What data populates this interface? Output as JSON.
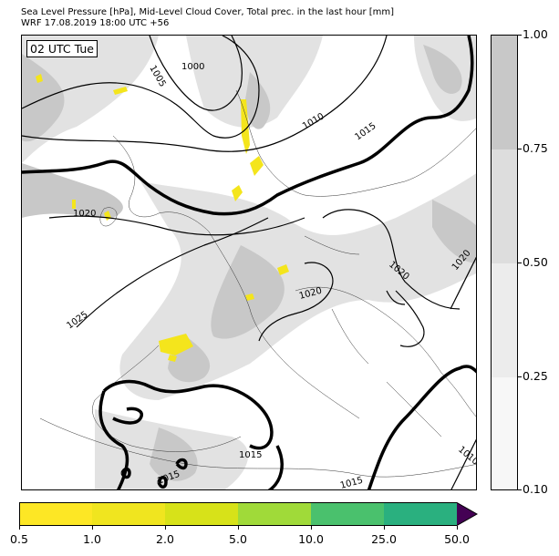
{
  "title_line1": "Sea Level Pressure [hPa], Mid-Level Cloud Cover, Total prec. in the last hour [mm]",
  "title_line2": "WRF 17.08.2019 18:00 UTC +56",
  "time_label": "02 UTC Tue",
  "isobar_labels": {
    "l1000": "1000",
    "l1005": "1005",
    "l1010_a": "1010",
    "l1015_a": "1015",
    "l1020_a": "1020",
    "l1020_b": "1020",
    "l1020_c": "1020",
    "l1020_d": "1020",
    "l1025": "1025",
    "l1015_b": "1015",
    "l1015_c": "1015",
    "l1015_d": "1015",
    "l1010_b": "1010"
  },
  "cloud_cover_colorbar": {
    "ticks": [
      "0.10",
      "0.25",
      "0.50",
      "0.75",
      "1.00"
    ],
    "colors": [
      "#f7f7f7",
      "#ececec",
      "#dddddd",
      "#c8c8c8"
    ]
  },
  "precip_colorbar": {
    "ticks": [
      "0.5",
      "1.0",
      "2.0",
      "5.0",
      "10.0",
      "25.0",
      "50.0"
    ],
    "colors": [
      "#fde725",
      "#f0e51f",
      "#d7e219",
      "#a0da39",
      "#4ac16d",
      "#2ab07f",
      "#3b528b",
      "#440154"
    ],
    "extend_color": "#440154"
  },
  "colors": {
    "cloud_heavy": "#c8c8c8",
    "cloud_light": "#e2e2e2",
    "precip": "#f4e51c",
    "isobar": "#000000"
  }
}
